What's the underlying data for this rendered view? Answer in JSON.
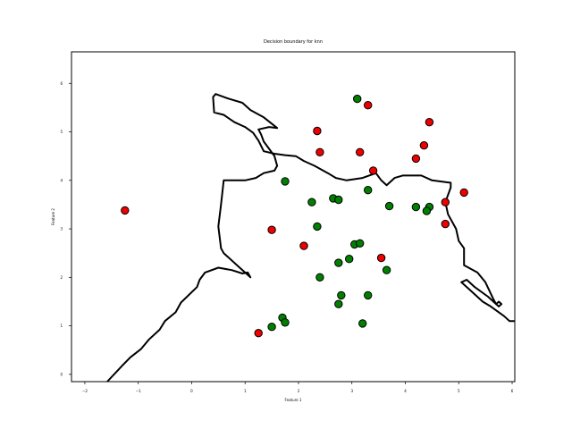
{
  "chart_data": {
    "type": "scatter",
    "title": "Decision boundary for knn",
    "xlabel": "Feature 1",
    "ylabel": "Feature 2",
    "xlim": [
      -2.25,
      6.05
    ],
    "ylim": [
      -0.15,
      6.65
    ],
    "xticks": [
      -2,
      -1,
      0,
      1,
      2,
      3,
      4,
      5,
      6
    ],
    "yticks": [
      0,
      1,
      2,
      3,
      4,
      5,
      6
    ],
    "grid": false,
    "colors": {
      "class_red": "#ee0000",
      "class_green": "#007f00",
      "boundary": "#000000",
      "marker_edge": "#000000"
    },
    "series": [
      {
        "color": "#ee0000",
        "points": [
          [
            3.3,
            5.55
          ],
          [
            2.35,
            5.02
          ],
          [
            4.45,
            5.2
          ],
          [
            2.4,
            4.58
          ],
          [
            3.15,
            4.58
          ],
          [
            4.35,
            4.72
          ],
          [
            4.2,
            4.45
          ],
          [
            3.4,
            4.2
          ],
          [
            -1.25,
            3.38
          ],
          [
            1.5,
            2.98
          ],
          [
            2.1,
            2.65
          ],
          [
            4.75,
            3.55
          ],
          [
            5.1,
            3.75
          ],
          [
            4.75,
            3.1
          ],
          [
            3.55,
            2.4
          ],
          [
            1.25,
            0.85
          ]
        ]
      },
      {
        "color": "#007f00",
        "points": [
          [
            3.1,
            5.68
          ],
          [
            1.75,
            3.98
          ],
          [
            2.25,
            3.55
          ],
          [
            2.65,
            3.63
          ],
          [
            2.75,
            3.6
          ],
          [
            3.3,
            3.8
          ],
          [
            3.7,
            3.47
          ],
          [
            4.2,
            3.45
          ],
          [
            4.45,
            3.45
          ],
          [
            4.4,
            3.37
          ],
          [
            2.35,
            3.05
          ],
          [
            3.05,
            2.68
          ],
          [
            3.15,
            2.7
          ],
          [
            2.75,
            2.3
          ],
          [
            2.95,
            2.38
          ],
          [
            3.65,
            2.15
          ],
          [
            2.4,
            2.0
          ],
          [
            2.8,
            1.63
          ],
          [
            3.3,
            1.63
          ],
          [
            2.75,
            1.45
          ],
          [
            1.7,
            1.17
          ],
          [
            1.75,
            1.07
          ],
          [
            1.5,
            0.98
          ],
          [
            3.2,
            1.05
          ]
        ]
      }
    ],
    "boundaries": [
      [
        [
          -1.58,
          -0.15
        ],
        [
          -1.3,
          0.18
        ],
        [
          -1.15,
          0.35
        ],
        [
          -0.95,
          0.52
        ],
        [
          -0.8,
          0.72
        ],
        [
          -0.6,
          0.92
        ],
        [
          -0.5,
          1.1
        ],
        [
          -0.3,
          1.28
        ],
        [
          -0.2,
          1.48
        ],
        [
          0.1,
          1.8
        ],
        [
          0.15,
          1.95
        ],
        [
          0.25,
          2.1
        ],
        [
          0.5,
          2.2
        ],
        [
          0.75,
          2.15
        ],
        [
          0.95,
          2.08
        ],
        [
          1.05,
          2.1
        ],
        [
          1.1,
          2.0
        ],
        [
          1.0,
          2.1
        ],
        [
          0.9,
          2.2
        ],
        [
          0.6,
          2.5
        ],
        [
          0.55,
          2.6
        ],
        [
          0.5,
          3.05
        ],
        [
          0.55,
          3.5
        ],
        [
          0.6,
          4.0
        ],
        [
          1.0,
          4.0
        ],
        [
          1.2,
          4.05
        ],
        [
          1.35,
          4.15
        ],
        [
          1.55,
          4.2
        ],
        [
          1.6,
          4.3
        ],
        [
          1.55,
          4.5
        ],
        [
          1.45,
          4.65
        ],
        [
          1.35,
          4.8
        ],
        [
          1.3,
          4.95
        ],
        [
          1.25,
          5.05
        ],
        [
          1.45,
          5.1
        ],
        [
          1.6,
          5.08
        ],
        [
          1.35,
          5.3
        ],
        [
          1.1,
          5.45
        ],
        [
          0.95,
          5.6
        ],
        [
          0.7,
          5.68
        ],
        [
          0.45,
          5.78
        ],
        [
          0.4,
          5.72
        ],
        [
          0.42,
          5.4
        ],
        [
          0.6,
          5.35
        ],
        [
          0.8,
          5.2
        ],
        [
          1.0,
          5.1
        ],
        [
          1.15,
          4.98
        ],
        [
          1.25,
          4.82
        ],
        [
          1.35,
          4.6
        ],
        [
          1.55,
          4.55
        ],
        [
          1.75,
          4.52
        ],
        [
          1.95,
          4.5
        ],
        [
          2.1,
          4.4
        ],
        [
          2.3,
          4.3
        ],
        [
          2.55,
          4.15
        ],
        [
          2.7,
          4.05
        ],
        [
          2.9,
          4.0
        ],
        [
          3.2,
          4.05
        ],
        [
          3.45,
          4.15
        ],
        [
          3.55,
          4.0
        ],
        [
          3.65,
          3.9
        ],
        [
          3.8,
          4.05
        ],
        [
          3.95,
          4.1
        ],
        [
          4.3,
          4.1
        ],
        [
          4.5,
          4.0
        ],
        [
          4.85,
          3.95
        ],
        [
          4.85,
          3.85
        ],
        [
          4.75,
          3.55
        ],
        [
          4.8,
          3.3
        ],
        [
          4.95,
          3.0
        ],
        [
          5.0,
          2.75
        ],
        [
          5.1,
          2.6
        ],
        [
          5.1,
          2.25
        ],
        [
          5.35,
          2.1
        ],
        [
          5.5,
          1.9
        ],
        [
          5.65,
          1.55
        ],
        [
          5.7,
          1.45
        ],
        [
          5.55,
          1.6
        ],
        [
          5.3,
          1.8
        ],
        [
          5.15,
          1.95
        ],
        [
          5.05,
          1.9
        ],
        [
          5.2,
          1.75
        ],
        [
          5.45,
          1.5
        ],
        [
          5.6,
          1.4
        ],
        [
          5.85,
          1.2
        ],
        [
          5.95,
          1.1
        ],
        [
          6.05,
          1.1
        ]
      ],
      [
        [
          5.7,
          1.45
        ],
        [
          5.75,
          1.4
        ],
        [
          5.8,
          1.45
        ],
        [
          5.75,
          1.5
        ],
        [
          5.7,
          1.45
        ]
      ]
    ]
  }
}
